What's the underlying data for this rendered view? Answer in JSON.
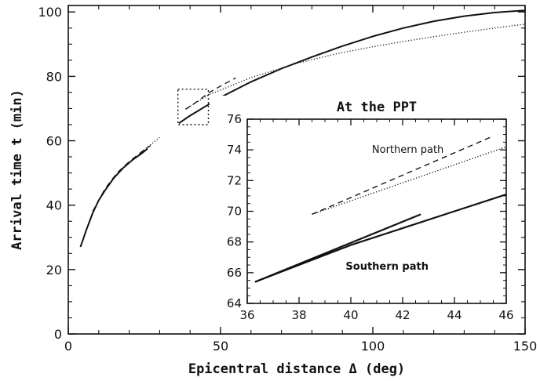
{
  "chart_data": [
    {
      "type": "line",
      "xlabel": "Epicentral distance  Δ  (deg)",
      "ylabel": "Arrival time  t  (min)",
      "xlim": [
        0,
        150
      ],
      "ylim": [
        0,
        102
      ],
      "xticks": [
        0,
        50,
        100,
        150
      ],
      "yticks": [
        0,
        20,
        40,
        60,
        80,
        100
      ],
      "grid": false,
      "series": [
        {
          "style": "solid",
          "x": [
            4,
            6,
            8,
            10,
            12,
            15,
            18,
            21,
            24,
            26
          ],
          "y": [
            27,
            32.5,
            37.5,
            41.5,
            44.5,
            48.5,
            51.5,
            54,
            56,
            57.5
          ]
        },
        {
          "style": "dashed",
          "x": [
            8,
            12,
            16,
            20,
            24,
            27
          ],
          "y": [
            38,
            45,
            50,
            53.5,
            56.5,
            58.5
          ]
        },
        {
          "style": "dotted",
          "x": [
            24,
            26,
            28,
            30
          ],
          "y": [
            56.5,
            58,
            59.5,
            61
          ]
        },
        {
          "style": "solid",
          "x": [
            36.3,
            40,
            50,
            60,
            70,
            80,
            90,
            100,
            110,
            120,
            130,
            140,
            150
          ],
          "y": [
            65.4,
            67.8,
            73.5,
            78.3,
            82.4,
            86,
            89.4,
            92.4,
            95,
            97.1,
            98.7,
            99.8,
            100.5
          ]
        },
        {
          "style": "dashed",
          "x": [
            38.5,
            42.5,
            46,
            50,
            55
          ],
          "y": [
            69.8,
            72.3,
            74.8,
            77,
            79.5
          ]
        },
        {
          "style": "dotted",
          "x": [
            38.5,
            46,
            60,
            75,
            88,
            100,
            110,
            120,
            130,
            140,
            150
          ],
          "y": [
            69.8,
            74.2,
            79.6,
            84,
            87,
            89.2,
            90.8,
            92.3,
            93.7,
            95,
            96.2
          ]
        }
      ],
      "zoom_box": {
        "x": [
          36,
          46
        ],
        "y": [
          65,
          76
        ]
      }
    },
    {
      "type": "line",
      "title": "At the PPT",
      "xlim": [
        36,
        46
      ],
      "ylim": [
        64,
        76
      ],
      "xticks": [
        36,
        38,
        40,
        42,
        44,
        46
      ],
      "yticks": [
        64,
        66,
        68,
        70,
        72,
        74,
        76
      ],
      "annotations": [
        {
          "text": "Northern path",
          "x": 42.2,
          "y": 73.8
        },
        {
          "text": "Southern path",
          "x": 41.4,
          "y": 66.2
        }
      ],
      "series": [
        {
          "style": "solid",
          "x": [
            36.3,
            42.7
          ],
          "y": [
            65.4,
            69.8
          ]
        },
        {
          "style": "solid",
          "x": [
            36.3,
            40,
            44,
            46
          ],
          "y": [
            65.4,
            67.8,
            70,
            71.1
          ]
        },
        {
          "style": "dashed",
          "x": [
            38.5,
            45.5
          ],
          "y": [
            69.8,
            74.9
          ]
        },
        {
          "style": "dotted",
          "x": [
            38.5,
            46
          ],
          "y": [
            69.8,
            74.2
          ]
        }
      ]
    }
  ]
}
